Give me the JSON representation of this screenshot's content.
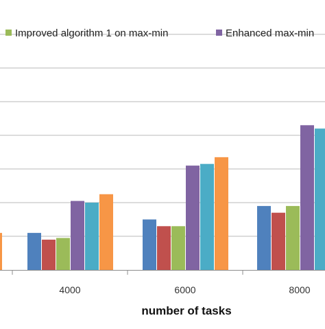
{
  "chart_data": {
    "type": "bar",
    "title": "",
    "xlabel": "number of tasks",
    "ylabel": "",
    "categories": [
      "",
      "4000",
      "6000",
      "8000"
    ],
    "ylim": [
      0,
      100
    ],
    "grid": true,
    "legend_position": "top",
    "series": [
      {
        "name": "",
        "color": "#4f81bd",
        "values": [
          null,
          11,
          15,
          19
        ]
      },
      {
        "name": "",
        "color": "#c0504d",
        "values": [
          null,
          9,
          13,
          17
        ]
      },
      {
        "name": "Improved algorithm 1 on max-min",
        "color": "#9bbb59",
        "values": [
          null,
          9.5,
          13,
          19
        ]
      },
      {
        "name": "Enhanced max-min",
        "color": "#8064a2",
        "values": [
          null,
          20.5,
          31,
          43
        ]
      },
      {
        "name": "",
        "color": "#4bacc6",
        "values": [
          null,
          20,
          31.5,
          42
        ]
      },
      {
        "name": "",
        "color": "#f79646",
        "values": [
          11,
          22.5,
          33.5,
          null
        ]
      }
    ]
  }
}
